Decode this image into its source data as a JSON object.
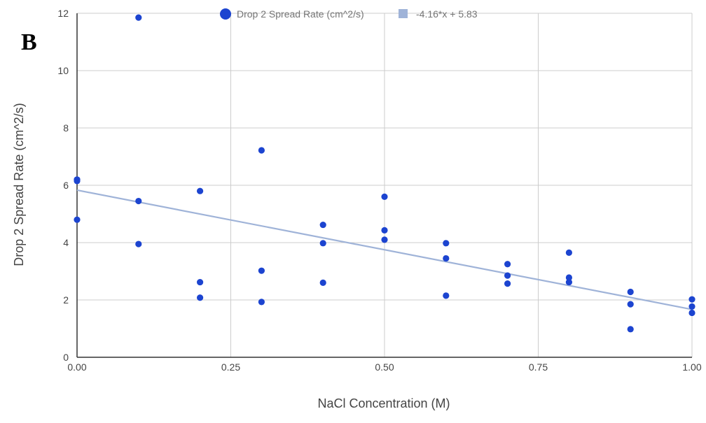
{
  "panel_label": "B",
  "colors": {
    "point": "#1c44d0",
    "trendline": "#9fb3d8",
    "grid": "#cccccc",
    "axis": "#333333",
    "text": "#444444",
    "legend_text": "#757575"
  },
  "chart_data": {
    "type": "scatter",
    "xlabel": "NaCl Concentration (M)",
    "ylabel": "Drop 2 Spread Rate (cm^2/s)",
    "xlim": [
      0,
      1
    ],
    "ylim": [
      0,
      12
    ],
    "x_ticks": [
      "0.00",
      "0.25",
      "0.50",
      "0.75",
      "1.00"
    ],
    "y_ticks": [
      "0",
      "2",
      "4",
      "6",
      "8",
      "10",
      "12"
    ],
    "grid": true,
    "legend_position": "top",
    "series": [
      {
        "name": "Drop 2 Spread Rate (cm^2/s)",
        "x": [
          0,
          0,
          0,
          0.1,
          0.1,
          0.1,
          0.2,
          0.2,
          0.2,
          0.3,
          0.3,
          0.3,
          0.4,
          0.4,
          0.4,
          0.5,
          0.5,
          0.5,
          0.6,
          0.6,
          0.6,
          0.7,
          0.7,
          0.7,
          0.8,
          0.8,
          0.8,
          0.9,
          0.9,
          0.9,
          1.0,
          1.0,
          1.0
        ],
        "y": [
          6.2,
          6.15,
          4.8,
          11.85,
          5.45,
          3.95,
          5.8,
          2.62,
          2.08,
          7.22,
          3.02,
          1.93,
          4.62,
          3.98,
          2.6,
          5.6,
          4.43,
          4.1,
          3.98,
          3.45,
          2.15,
          3.25,
          2.85,
          2.57,
          3.65,
          2.78,
          2.62,
          2.28,
          1.85,
          0.98,
          2.02,
          1.77,
          1.55
        ]
      }
    ],
    "trendline": {
      "name": "-4.16*x + 5.83",
      "slope": -4.16,
      "intercept": 5.83
    }
  }
}
